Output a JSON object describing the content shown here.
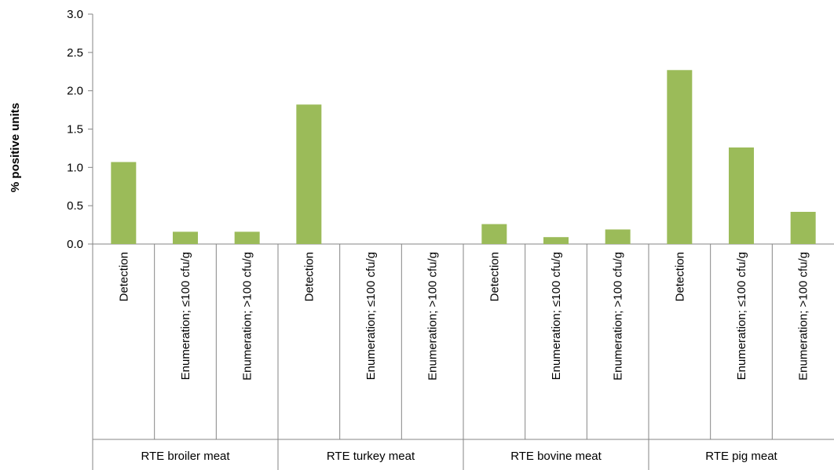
{
  "chart_data": {
    "type": "bar",
    "title": "",
    "xlabel": "",
    "ylabel": "% positive units",
    "ylim": [
      0,
      3.0
    ],
    "yticks": [
      "0.0",
      "0.5",
      "1.0",
      "1.5",
      "2.0",
      "2.5",
      "3.0"
    ],
    "grid": false,
    "legend": "none",
    "bar_color": "#9bbb59",
    "axis_color": "#868686",
    "groups": [
      {
        "label": "RTE broiler meat",
        "categories": [
          "Detection",
          "Enumeration; ≤100 cfu/g",
          "Enumeration; >100 cfu/g"
        ],
        "values": [
          1.07,
          0.16,
          0.16
        ]
      },
      {
        "label": "RTE turkey meat",
        "categories": [
          "Detection",
          "Enumeration; ≤100 cfu/g",
          "Enumeration; >100 cfu/g"
        ],
        "values": [
          1.82,
          0,
          0
        ]
      },
      {
        "label": "RTE bovine meat",
        "categories": [
          "Detection",
          "Enumeration; ≤100 cfu/g",
          "Enumeration; >100 cfu/g"
        ],
        "values": [
          0.26,
          0.09,
          0.19
        ]
      },
      {
        "label": "RTE pig meat",
        "categories": [
          "Detection",
          "Enumeration; ≤100 cfu/g",
          "Enumeration; >100 cfu/g"
        ],
        "values": [
          2.27,
          1.26,
          0.42
        ]
      }
    ]
  }
}
